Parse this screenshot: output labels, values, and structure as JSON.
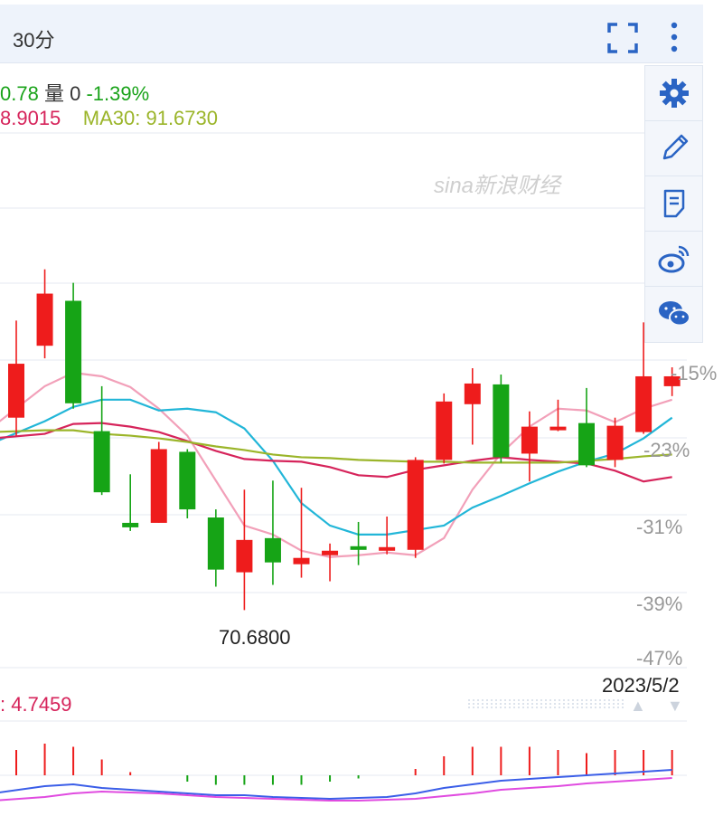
{
  "header": {
    "period": "30分"
  },
  "info": {
    "price": "0.78",
    "volume_label": "量",
    "volume": "0",
    "change": "-1.39%",
    "ma_left": "8.9015",
    "ma30_label": "MA30:",
    "ma30": "91.6730"
  },
  "sidebar": {
    "items": [
      "gear-icon",
      "pencil-icon",
      "notes-icon",
      "weibo-icon",
      "wechat-icon"
    ]
  },
  "watermark": "sina新浪财经",
  "colors": {
    "up": "#ee1c1c",
    "down": "#16a416",
    "ma5": "#f2a0b9",
    "ma10": "#22b6d8",
    "ma20": "#d6245b",
    "ma30": "#9bb52a",
    "grid": "#e6eaf0"
  },
  "chart_data": {
    "type": "candlestick",
    "yaxis": {
      "labels": [
        "-15%",
        "-23%",
        "-31%",
        "-39%",
        "-47%"
      ]
    },
    "low_annotation": "70.6800",
    "date_label": "2023/5/2",
    "candles": [
      {
        "o": -20.0,
        "c": -14.0,
        "h": -9.2,
        "l": -22.0
      },
      {
        "o": -12.0,
        "c": -6.2,
        "h": -3.5,
        "l": -13.4
      },
      {
        "o": -7.0,
        "c": -18.4,
        "h": -5.0,
        "l": -19.0
      },
      {
        "o": -21.5,
        "c": -28.3,
        "h": -16.5,
        "l": -28.6
      },
      {
        "o": -31.7,
        "c": -32.2,
        "h": -26.3,
        "l": -32.6
      },
      {
        "o": -31.7,
        "c": -23.5,
        "h": -22.7,
        "l": -31.7
      },
      {
        "o": -23.8,
        "c": -30.2,
        "h": -23.5,
        "l": -31.2
      },
      {
        "o": -31.1,
        "c": -36.9,
        "h": -30.2,
        "l": -38.8
      },
      {
        "o": -37.2,
        "c": -33.6,
        "h": -28.0,
        "l": -41.4
      },
      {
        "o": -33.4,
        "c": -36.1,
        "h": -27.0,
        "l": -38.6
      },
      {
        "o": -36.3,
        "c": -35.6,
        "h": -27.8,
        "l": -37.8
      },
      {
        "o": -35.3,
        "c": -34.8,
        "h": -34.0,
        "l": -38.2
      },
      {
        "o": -34.3,
        "c": -34.7,
        "h": -31.6,
        "l": -36.4
      },
      {
        "o": -34.7,
        "c": -34.4,
        "h": -31.0,
        "l": -35.2
      },
      {
        "o": -34.7,
        "c": -24.7,
        "h": -24.4,
        "l": -35.6
      },
      {
        "o": -24.7,
        "c": -18.2,
        "h": -17.3,
        "l": -25.1
      },
      {
        "o": -18.5,
        "c": -16.2,
        "h": -14.5,
        "l": -23.0
      },
      {
        "o": -16.3,
        "c": -24.4,
        "h": -15.2,
        "l": -25.0
      },
      {
        "o": -24.0,
        "c": -21.0,
        "h": -19.3,
        "l": -27.1
      },
      {
        "o": -21.3,
        "c": -21.0,
        "h": -18.0,
        "l": -21.5
      },
      {
        "o": -20.6,
        "c": -25.3,
        "h": -16.7,
        "l": -25.5
      },
      {
        "o": -24.7,
        "c": -20.9,
        "h": -20.0,
        "l": -25.5
      },
      {
        "o": -21.6,
        "c": -15.4,
        "h": -9.4,
        "l": -21.8
      },
      {
        "o": -16.5,
        "c": -15.4,
        "h": -14.4,
        "l": -17.6
      }
    ],
    "ma_lines": {
      "ma5": [
        -21.0,
        -16.5,
        -15.0,
        -15.4,
        -16.6,
        -19.0,
        -22.0,
        -27.0,
        -32.0,
        -33.0,
        -34.8,
        -35.5,
        -35.3,
        -35.0,
        -35.3,
        -33.4,
        -28.0,
        -24.0,
        -21.0,
        -19.0,
        -19.2,
        -20.5,
        -19.0,
        -18.0
      ],
      "ma10": [
        -22.8,
        -20.4,
        -18.8,
        -18.0,
        -18.0,
        -19.2,
        -19.0,
        -19.4,
        -21.2,
        -24.8,
        -29.5,
        -32.0,
        -33.0,
        -33.0,
        -32.5,
        -32.0,
        -30.0,
        -28.7,
        -27.3,
        -26.0,
        -24.9,
        -24.0,
        -22.3,
        -20.0
      ],
      "ma20": [
        -22.3,
        -21.8,
        -20.7,
        -20.6,
        -21.0,
        -21.6,
        -22.6,
        -23.7,
        -24.6,
        -24.8,
        -24.9,
        -25.5,
        -26.4,
        -26.6,
        -25.8,
        -25.3,
        -24.8,
        -24.4,
        -24.7,
        -24.9,
        -25.1,
        -25.9,
        -27.1,
        -26.6
      ],
      "ma30": [
        -21.6,
        -21.4,
        -21.4,
        -21.8,
        -22.0,
        -22.3,
        -22.7,
        -23.2,
        -23.6,
        -24.1,
        -24.4,
        -24.5,
        -24.7,
        -24.8,
        -24.9,
        -24.9,
        -25.0,
        -25.0,
        -25.0,
        -25.0,
        -24.8,
        -24.6,
        -24.3,
        -24.1
      ]
    },
    "macd": {
      "value_label": "4.7459",
      "bars": [
        0.8,
        1.0,
        0.9,
        0.5,
        0.1,
        0.0,
        -0.2,
        -0.3,
        -0.3,
        -0.3,
        -0.3,
        -0.2,
        -0.1,
        0.0,
        0.2,
        0.6,
        0.9,
        0.9,
        0.9,
        0.8,
        0.7,
        0.8,
        0.8,
        0.8
      ],
      "dif": [
        -1.2,
        -0.8,
        -0.7,
        -0.9,
        -1.0,
        -1.1,
        -1.2,
        -1.3,
        -1.3,
        -1.4,
        -1.45,
        -1.5,
        -1.45,
        -1.4,
        -1.2,
        -0.9,
        -0.7,
        -0.5,
        -0.4,
        -0.3,
        -0.2,
        -0.1,
        0.0,
        0.1
      ],
      "dea": [
        -1.6,
        -1.4,
        -1.2,
        -1.1,
        -1.15,
        -1.2,
        -1.3,
        -1.4,
        -1.45,
        -1.5,
        -1.55,
        -1.6,
        -1.6,
        -1.55,
        -1.5,
        -1.35,
        -1.2,
        -1.0,
        -0.9,
        -0.8,
        -0.65,
        -0.55,
        -0.45,
        -0.35
      ]
    }
  }
}
